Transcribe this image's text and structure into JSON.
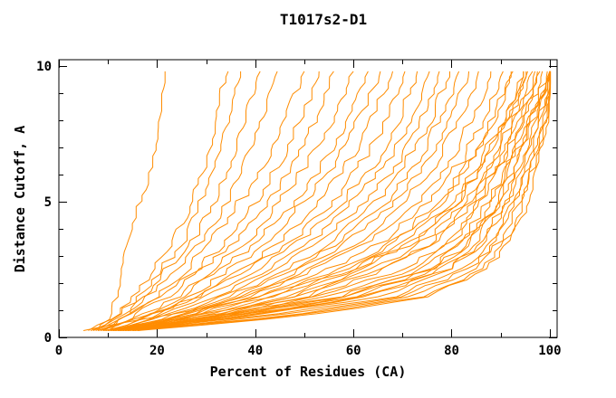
{
  "window": {
    "background": "#ffffff"
  },
  "chart_data": {
    "type": "line",
    "title": "T1017s2-D1",
    "xlabel": "Percent of Residues (CA)",
    "ylabel": "Distance Cutoff, A",
    "xlim": [
      0,
      101.5
    ],
    "ylim": [
      0,
      10.23
    ],
    "x_major_ticks": [
      0,
      20,
      40,
      60,
      80,
      100
    ],
    "x_minor_ticks": [
      10,
      30,
      50,
      70,
      90
    ],
    "y_major_ticks": [
      0,
      5,
      10
    ],
    "y_minor_ticks": [
      1,
      2,
      3,
      4,
      6,
      7,
      8,
      9
    ],
    "grid": false,
    "legend": "none",
    "frame_color": "#000000",
    "line_color": "#ff8c00",
    "ticks_style": "inward-all-sides",
    "anchor_cutoffs": [
      0.25,
      0.75,
      1.5,
      2.5,
      3.5,
      5,
      6.5,
      8,
      9,
      9.8
    ],
    "series": [
      {
        "values": [
          8,
          10,
          11.5,
          12.8,
          13.6,
          16.5,
          19.3,
          20.6,
          21,
          21.6
        ]
      },
      {
        "values": [
          6,
          11,
          15,
          19,
          23,
          27,
          30,
          32,
          33,
          34.5
        ]
      },
      {
        "values": [
          7,
          12,
          16,
          21,
          25,
          29,
          32,
          34.5,
          36,
          37
        ]
      },
      {
        "values": [
          6.5,
          12.5,
          17.5,
          22,
          27,
          31.5,
          35,
          38,
          39.5,
          41
        ]
      },
      {
        "values": [
          8,
          13,
          18,
          24,
          29,
          34,
          38,
          41,
          43,
          44.5
        ]
      },
      {
        "values": [
          7.5,
          14,
          20,
          26,
          31,
          37,
          42,
          45.5,
          48,
          50
        ]
      },
      {
        "values": [
          8,
          14,
          21,
          28,
          34,
          40,
          45,
          49,
          51.5,
          53
        ]
      },
      {
        "values": [
          9,
          15,
          22,
          29,
          35.5,
          42.5,
          48,
          52,
          54.5,
          56
        ]
      },
      {
        "values": [
          8.5,
          16,
          24,
          31,
          38,
          45,
          51,
          55.5,
          58,
          60
        ]
      },
      {
        "values": [
          10,
          17,
          25,
          33,
          40,
          48,
          54,
          58.5,
          61,
          63
        ]
      },
      {
        "values": [
          9.5,
          18,
          27,
          35,
          42,
          50,
          56.5,
          61,
          63.5,
          65.5
        ]
      },
      {
        "values": [
          11,
          19,
          28,
          37,
          45,
          53,
          59,
          63.5,
          66,
          68
        ]
      },
      {
        "values": [
          10,
          18,
          28,
          38,
          47,
          56,
          62,
          66.5,
          69,
          70.5
        ]
      },
      {
        "values": [
          11,
          20,
          30,
          40,
          49,
          58,
          64.5,
          69,
          71.5,
          73
        ]
      },
      {
        "values": [
          10.5,
          21,
          32,
          42,
          51,
          60,
          67,
          71.5,
          74,
          75.5
        ]
      },
      {
        "values": [
          12,
          22,
          33,
          44,
          53,
          62.5,
          69,
          73.5,
          76,
          77.5
        ]
      },
      {
        "values": [
          11.5,
          23,
          35,
          46,
          55,
          64.5,
          71,
          75.5,
          78,
          79.5
        ]
      },
      {
        "values": [
          13,
          24,
          36,
          47.5,
          57,
          66.5,
          73,
          77.5,
          80,
          81.5
        ]
      },
      {
        "values": [
          12.5,
          25,
          38,
          49,
          59,
          68.5,
          75,
          79.5,
          82,
          83.5
        ]
      },
      {
        "values": [
          14,
          26,
          39,
          51,
          61,
          70.5,
          77,
          81.5,
          84,
          85.5
        ]
      },
      {
        "values": [
          12,
          24,
          38,
          52,
          63,
          73,
          79.5,
          84,
          86.5,
          88
        ]
      },
      {
        "values": [
          13,
          26,
          41,
          55,
          66,
          75.5,
          82,
          86.5,
          89,
          90.5
        ]
      },
      {
        "values": [
          14,
          28,
          44,
          58,
          68.5,
          78,
          84,
          88.5,
          91,
          92.5
        ]
      },
      {
        "values": [
          15,
          30,
          46,
          60,
          70.5,
          80,
          86,
          90.5,
          93,
          94.5
        ]
      },
      {
        "values": [
          13.5,
          27,
          43,
          57,
          68,
          77.5,
          83.5,
          88,
          90.5,
          92
        ]
      },
      {
        "values": [
          14.5,
          31,
          48,
          62,
          72,
          81,
          87,
          91,
          93.5,
          95
        ]
      },
      {
        "values": [
          15.5,
          33,
          50,
          64,
          74,
          83,
          88.5,
          92.5,
          95,
          96.5
        ]
      },
      {
        "values": [
          16,
          34,
          52,
          66,
          76,
          84.5,
          90,
          94,
          96.5,
          98
        ]
      },
      {
        "values": [
          10,
          30,
          55,
          72,
          80,
          86,
          90,
          93.5,
          96,
          97.5
        ]
      },
      {
        "values": [
          11,
          33,
          58,
          75,
          82.5,
          88,
          92,
          95.5,
          98,
          99.5
        ]
      },
      {
        "values": [
          12,
          36,
          62,
          78,
          85,
          90,
          93.5,
          96.5,
          99,
          100
        ]
      },
      {
        "values": [
          9,
          28,
          52,
          70,
          79,
          85.5,
          89.5,
          93,
          95.5,
          97
        ]
      },
      {
        "values": [
          13,
          38,
          65,
          80,
          86.5,
          91.5,
          94.5,
          97.5,
          99.5,
          100
        ]
      },
      {
        "values": [
          12.5,
          40,
          68,
          82,
          88,
          92.5,
          95.5,
          98,
          99.8,
          100
        ]
      },
      {
        "values": [
          11.5,
          35,
          60,
          77,
          84,
          89.5,
          93,
          96,
          98.5,
          100
        ]
      },
      {
        "values": [
          14,
          42,
          70,
          83.5,
          89,
          93,
          96,
          98.5,
          100,
          100
        ]
      },
      {
        "values": [
          10.5,
          32,
          57,
          74,
          81.5,
          87.5,
          91.5,
          94.5,
          97,
          98.5
        ]
      },
      {
        "values": [
          13.5,
          44,
          72,
          85,
          90,
          94,
          96.5,
          99,
          100,
          100
        ]
      },
      {
        "values": [
          15,
          46,
          74,
          86,
          91,
          94.5,
          97,
          99.3,
          100,
          100
        ]
      },
      {
        "values": [
          9.5,
          26,
          48,
          66,
          76,
          83.5,
          88,
          91.5,
          94,
          95.5
        ]
      },
      {
        "values": [
          16,
          48,
          76,
          87,
          92,
          95.5,
          97.5,
          99.5,
          100,
          100
        ]
      },
      {
        "values": [
          12,
          37,
          63,
          79,
          86,
          91,
          94,
          97,
          99.2,
          100
        ]
      },
      {
        "values": [
          11,
          34,
          59,
          76,
          83.5,
          89,
          92.5,
          95.8,
          98.2,
          99.8
        ]
      },
      {
        "values": [
          5,
          20,
          40,
          60,
          72,
          81,
          86.5,
          90.5,
          93,
          94.5
        ]
      }
    ],
    "render_hints": {
      "jitter_seed": 7,
      "jitter_amplitude_percent": 1.1,
      "curve_segments": 46
    }
  }
}
